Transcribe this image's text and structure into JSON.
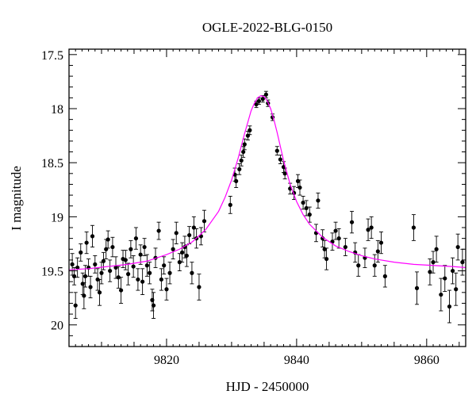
{
  "chart_data": {
    "type": "scatter",
    "title": "OGLE-2022-BLG-0150",
    "xlabel": "HJD - 2450000",
    "ylabel": "I magnitude",
    "xlim": [
      9805,
      9866
    ],
    "ylim": [
      17.45,
      20.2
    ],
    "y_inverted": true,
    "x_ticks": [
      9820,
      9840,
      9860
    ],
    "y_ticks": [
      17.5,
      18,
      18.5,
      19,
      19.5,
      20
    ],
    "x_tick_labels": [
      "9820",
      "9840",
      "9860"
    ],
    "y_tick_labels": [
      "17.5",
      "18",
      "18.5",
      "19",
      "19.5",
      "20"
    ],
    "grid": false,
    "colors": {
      "points": "#000000",
      "model": "#ff00ff",
      "frame": "#000000"
    },
    "series": [
      {
        "kind": "points-with-errorbars",
        "points": [
          {
            "x": 9805.5,
            "y": 19.44,
            "e": 0.1
          },
          {
            "x": 9805.8,
            "y": 19.55,
            "e": 0.08
          },
          {
            "x": 9806.0,
            "y": 19.82,
            "e": 0.12
          },
          {
            "x": 9806.3,
            "y": 19.47,
            "e": 0.09
          },
          {
            "x": 9806.8,
            "y": 19.33,
            "e": 0.08
          },
          {
            "x": 9807.1,
            "y": 19.62,
            "e": 0.1
          },
          {
            "x": 9807.3,
            "y": 19.73,
            "e": 0.12
          },
          {
            "x": 9807.5,
            "y": 19.55,
            "e": 0.1
          },
          {
            "x": 9807.7,
            "y": 19.24,
            "e": 0.1
          },
          {
            "x": 9808.0,
            "y": 19.47,
            "e": 0.08
          },
          {
            "x": 9808.3,
            "y": 19.65,
            "e": 0.1
          },
          {
            "x": 9808.6,
            "y": 19.18,
            "e": 0.1
          },
          {
            "x": 9809.0,
            "y": 19.44,
            "e": 0.08
          },
          {
            "x": 9809.4,
            "y": 19.58,
            "e": 0.1
          },
          {
            "x": 9809.7,
            "y": 19.7,
            "e": 0.12
          },
          {
            "x": 9810.0,
            "y": 19.52,
            "e": 0.1
          },
          {
            "x": 9810.3,
            "y": 19.41,
            "e": 0.08
          },
          {
            "x": 9810.7,
            "y": 19.3,
            "e": 0.09
          },
          {
            "x": 9811.0,
            "y": 19.21,
            "e": 0.08
          },
          {
            "x": 9811.3,
            "y": 19.5,
            "e": 0.1
          },
          {
            "x": 9811.7,
            "y": 19.28,
            "e": 0.09
          },
          {
            "x": 9812.2,
            "y": 19.47,
            "e": 0.1
          },
          {
            "x": 9812.6,
            "y": 19.56,
            "e": 0.1
          },
          {
            "x": 9813.0,
            "y": 19.68,
            "e": 0.12
          },
          {
            "x": 9813.3,
            "y": 19.39,
            "e": 0.08
          },
          {
            "x": 9813.7,
            "y": 19.4,
            "e": 0.09
          },
          {
            "x": 9814.1,
            "y": 19.53,
            "e": 0.1
          },
          {
            "x": 9814.5,
            "y": 19.3,
            "e": 0.08
          },
          {
            "x": 9814.9,
            "y": 19.46,
            "e": 0.1
          },
          {
            "x": 9815.3,
            "y": 19.2,
            "e": 0.1
          },
          {
            "x": 9815.6,
            "y": 19.58,
            "e": 0.1
          },
          {
            "x": 9816.0,
            "y": 19.35,
            "e": 0.09
          },
          {
            "x": 9816.3,
            "y": 19.6,
            "e": 0.12
          },
          {
            "x": 9816.6,
            "y": 19.28,
            "e": 0.08
          },
          {
            "x": 9817.0,
            "y": 19.45,
            "e": 0.1
          },
          {
            "x": 9817.4,
            "y": 19.52,
            "e": 0.1
          },
          {
            "x": 9817.8,
            "y": 19.77,
            "e": 0.1
          },
          {
            "x": 9818.0,
            "y": 19.82,
            "e": 0.12
          },
          {
            "x": 9818.3,
            "y": 19.38,
            "e": 0.09
          },
          {
            "x": 9818.8,
            "y": 19.13,
            "e": 0.08
          },
          {
            "x": 9819.2,
            "y": 19.58,
            "e": 0.1
          },
          {
            "x": 9819.6,
            "y": 19.45,
            "e": 0.08
          },
          {
            "x": 9820.0,
            "y": 19.67,
            "e": 0.1
          },
          {
            "x": 9820.5,
            "y": 19.52,
            "e": 0.1
          },
          {
            "x": 9821.0,
            "y": 19.3,
            "e": 0.09
          },
          {
            "x": 9821.5,
            "y": 19.15,
            "e": 0.1
          },
          {
            "x": 9822.0,
            "y": 19.42,
            "e": 0.08
          },
          {
            "x": 9822.4,
            "y": 19.33,
            "e": 0.09
          },
          {
            "x": 9822.8,
            "y": 19.28,
            "e": 0.1
          },
          {
            "x": 9823.1,
            "y": 19.36,
            "e": 0.1
          },
          {
            "x": 9823.5,
            "y": 19.17,
            "e": 0.08
          },
          {
            "x": 9823.9,
            "y": 19.52,
            "e": 0.1
          },
          {
            "x": 9824.2,
            "y": 19.1,
            "e": 0.1
          },
          {
            "x": 9824.6,
            "y": 19.2,
            "e": 0.09
          },
          {
            "x": 9825.0,
            "y": 19.65,
            "e": 0.12
          },
          {
            "x": 9825.3,
            "y": 19.18,
            "e": 0.08
          },
          {
            "x": 9825.8,
            "y": 19.04,
            "e": 0.1
          },
          {
            "x": 9829.8,
            "y": 18.89,
            "e": 0.08
          },
          {
            "x": 9830.5,
            "y": 18.61,
            "e": 0.06
          },
          {
            "x": 9830.7,
            "y": 18.67,
            "e": 0.06
          },
          {
            "x": 9831.2,
            "y": 18.56,
            "e": 0.05
          },
          {
            "x": 9831.5,
            "y": 18.48,
            "e": 0.05
          },
          {
            "x": 9831.8,
            "y": 18.4,
            "e": 0.05
          },
          {
            "x": 9832.0,
            "y": 18.33,
            "e": 0.05
          },
          {
            "x": 9832.5,
            "y": 18.25,
            "e": 0.04
          },
          {
            "x": 9832.8,
            "y": 18.2,
            "e": 0.04
          },
          {
            "x": 9833.8,
            "y": 17.96,
            "e": 0.03
          },
          {
            "x": 9834.2,
            "y": 17.93,
            "e": 0.03
          },
          {
            "x": 9834.8,
            "y": 17.91,
            "e": 0.03
          },
          {
            "x": 9835.3,
            "y": 17.87,
            "e": 0.03
          },
          {
            "x": 9835.6,
            "y": 17.95,
            "e": 0.03
          },
          {
            "x": 9836.3,
            "y": 18.08,
            "e": 0.03
          },
          {
            "x": 9837.0,
            "y": 18.39,
            "e": 0.04
          },
          {
            "x": 9837.5,
            "y": 18.47,
            "e": 0.04
          },
          {
            "x": 9838.0,
            "y": 18.54,
            "e": 0.05
          },
          {
            "x": 9838.2,
            "y": 18.6,
            "e": 0.05
          },
          {
            "x": 9839.0,
            "y": 18.74,
            "e": 0.05
          },
          {
            "x": 9839.6,
            "y": 18.78,
            "e": 0.06
          },
          {
            "x": 9840.2,
            "y": 18.67,
            "e": 0.06
          },
          {
            "x": 9840.5,
            "y": 18.73,
            "e": 0.07
          },
          {
            "x": 9841.0,
            "y": 18.87,
            "e": 0.06
          },
          {
            "x": 9841.5,
            "y": 18.92,
            "e": 0.07
          },
          {
            "x": 9842.0,
            "y": 18.98,
            "e": 0.07
          },
          {
            "x": 9843.0,
            "y": 19.15,
            "e": 0.08
          },
          {
            "x": 9843.3,
            "y": 18.85,
            "e": 0.07
          },
          {
            "x": 9844.0,
            "y": 19.2,
            "e": 0.08
          },
          {
            "x": 9844.3,
            "y": 19.3,
            "e": 0.08
          },
          {
            "x": 9844.6,
            "y": 19.39,
            "e": 0.1
          },
          {
            "x": 9845.5,
            "y": 19.23,
            "e": 0.08
          },
          {
            "x": 9846.0,
            "y": 19.13,
            "e": 0.08
          },
          {
            "x": 9846.5,
            "y": 19.2,
            "e": 0.09
          },
          {
            "x": 9847.5,
            "y": 19.28,
            "e": 0.08
          },
          {
            "x": 9848.5,
            "y": 19.05,
            "e": 0.1
          },
          {
            "x": 9849.0,
            "y": 19.33,
            "e": 0.09
          },
          {
            "x": 9849.5,
            "y": 19.45,
            "e": 0.1
          },
          {
            "x": 9850.5,
            "y": 19.38,
            "e": 0.09
          },
          {
            "x": 9851.0,
            "y": 19.12,
            "e": 0.1
          },
          {
            "x": 9851.5,
            "y": 19.1,
            "e": 0.1
          },
          {
            "x": 9852.0,
            "y": 19.45,
            "e": 0.1
          },
          {
            "x": 9852.5,
            "y": 19.32,
            "e": 0.1
          },
          {
            "x": 9853.0,
            "y": 19.24,
            "e": 0.1
          },
          {
            "x": 9853.6,
            "y": 19.55,
            "e": 0.1
          },
          {
            "x": 9858.0,
            "y": 19.1,
            "e": 0.12
          },
          {
            "x": 9858.5,
            "y": 19.66,
            "e": 0.15
          },
          {
            "x": 9860.5,
            "y": 19.51,
            "e": 0.12
          },
          {
            "x": 9861.0,
            "y": 19.42,
            "e": 0.1
          },
          {
            "x": 9861.5,
            "y": 19.3,
            "e": 0.12
          },
          {
            "x": 9862.2,
            "y": 19.72,
            "e": 0.15
          },
          {
            "x": 9862.8,
            "y": 19.57,
            "e": 0.12
          },
          {
            "x": 9863.5,
            "y": 19.83,
            "e": 0.15
          },
          {
            "x": 9864.0,
            "y": 19.5,
            "e": 0.12
          },
          {
            "x": 9864.5,
            "y": 19.67,
            "e": 0.15
          },
          {
            "x": 9864.8,
            "y": 19.28,
            "e": 0.12
          },
          {
            "x": 9865.5,
            "y": 19.42,
            "e": 0.12
          }
        ]
      },
      {
        "kind": "model-curve",
        "x": [
          9805,
          9808,
          9811,
          9814,
          9817,
          9820,
          9822,
          9824,
          9826,
          9828,
          9829,
          9830,
          9831,
          9832,
          9833,
          9833.5,
          9834,
          9834.5,
          9835,
          9835.5,
          9836,
          9836.5,
          9837,
          9837.5,
          9838,
          9839,
          9840,
          9841,
          9842,
          9844,
          9846,
          9848,
          9850,
          9852,
          9855,
          9858,
          9861,
          9864,
          9866
        ],
        "y": [
          19.49,
          19.48,
          19.46,
          19.44,
          19.41,
          19.35,
          19.3,
          19.23,
          19.12,
          18.95,
          18.82,
          18.66,
          18.46,
          18.23,
          18.02,
          17.95,
          17.9,
          17.88,
          17.89,
          17.93,
          18.0,
          18.1,
          18.22,
          18.35,
          18.48,
          18.7,
          18.86,
          18.98,
          19.07,
          19.19,
          19.27,
          19.32,
          19.36,
          19.39,
          19.42,
          19.44,
          19.45,
          19.46,
          19.47
        ]
      }
    ]
  }
}
